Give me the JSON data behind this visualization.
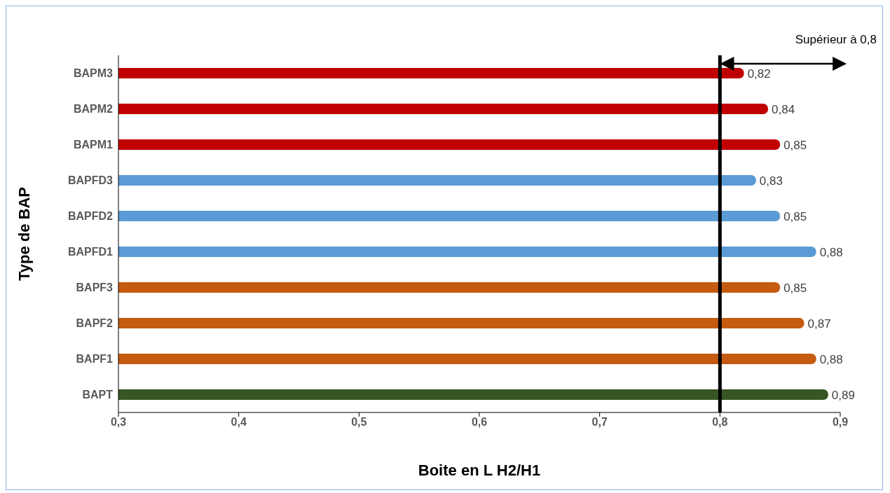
{
  "chart_data": {
    "type": "bar",
    "orientation": "horizontal",
    "xlabel": "Boite en L  H2/H1",
    "ylabel": "Type de BAP",
    "categories": [
      "BAPM3",
      "BAPM2",
      "BAPM1",
      "BAPFD3",
      "BAPFD2",
      "BAPFD1",
      "BAPF3",
      "BAPF2",
      "BAPF1",
      "BAPT"
    ],
    "values": [
      0.82,
      0.84,
      0.85,
      0.83,
      0.85,
      0.88,
      0.85,
      0.87,
      0.88,
      0.89
    ],
    "value_labels": [
      "0,82",
      "0,84",
      "0,85",
      "0,83",
      "0,85",
      "0,88",
      "0,85",
      "0,87",
      "0,88",
      "0,89"
    ],
    "colors": [
      "#c00000",
      "#c00000",
      "#c00000",
      "#5b9bd5",
      "#5b9bd5",
      "#5b9bd5",
      "#c55a11",
      "#c55a11",
      "#c55a11",
      "#375623"
    ],
    "xlim": [
      0.3,
      0.9
    ],
    "xticks": [
      {
        "value": 0.3,
        "label": "0,3"
      },
      {
        "value": 0.4,
        "label": "0,4"
      },
      {
        "value": 0.5,
        "label": "0,5"
      },
      {
        "value": 0.6,
        "label": "0,6"
      },
      {
        "value": 0.7,
        "label": "0,7"
      },
      {
        "value": 0.8,
        "label": "0,8"
      },
      {
        "value": 0.9,
        "label": "0,9"
      }
    ],
    "ref_lines": [
      {
        "axis": "x",
        "value": 0.8,
        "color": "#000000"
      }
    ],
    "annotations": [
      "Supérieur à 0,8"
    ],
    "grid": false,
    "legend": false
  }
}
